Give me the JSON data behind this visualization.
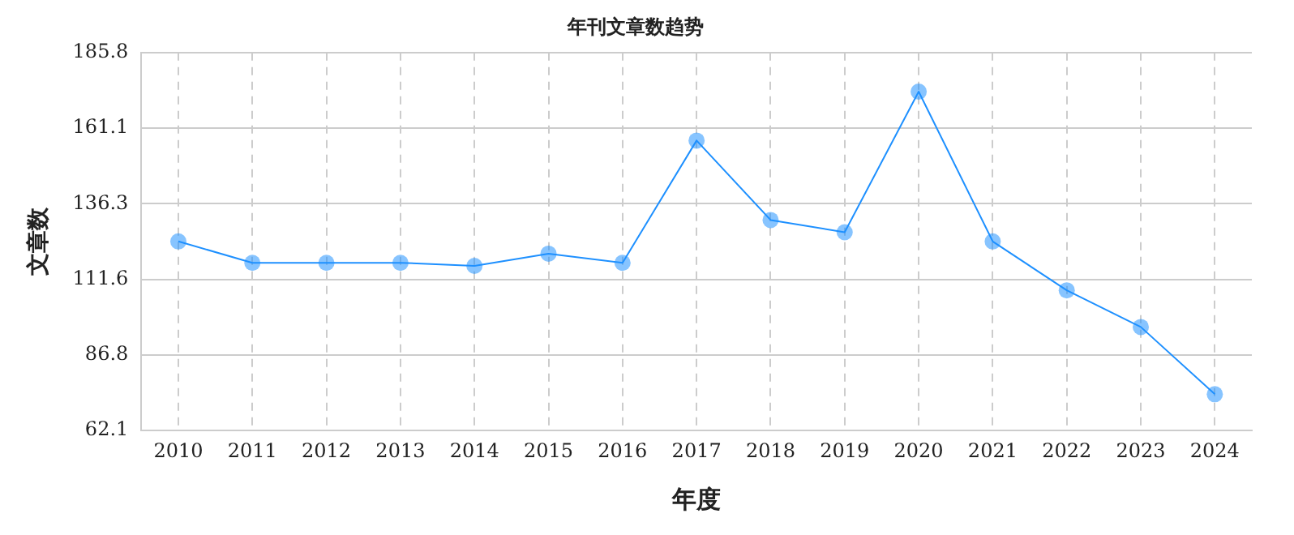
{
  "chart_data": {
    "type": "line",
    "title": "年刊文章数趋势",
    "xlabel": "年度",
    "ylabel": "文章数",
    "categories": [
      "2010",
      "2011",
      "2012",
      "2013",
      "2014",
      "2015",
      "2016",
      "2017",
      "2018",
      "2019",
      "2020",
      "2021",
      "2022",
      "2023",
      "2024"
    ],
    "series": [
      {
        "color": "#1e90ff",
        "values": [
          124,
          117,
          117,
          117,
          116,
          120,
          117,
          157,
          131,
          127,
          173,
          124,
          108,
          96,
          74
        ]
      }
    ],
    "ylim": [
      62.1,
      185.8
    ],
    "yticks": [
      62.1,
      86.8,
      111.6,
      136.3,
      161.1,
      185.8
    ],
    "grid": true,
    "marker": "circle",
    "line_style": "solid"
  }
}
